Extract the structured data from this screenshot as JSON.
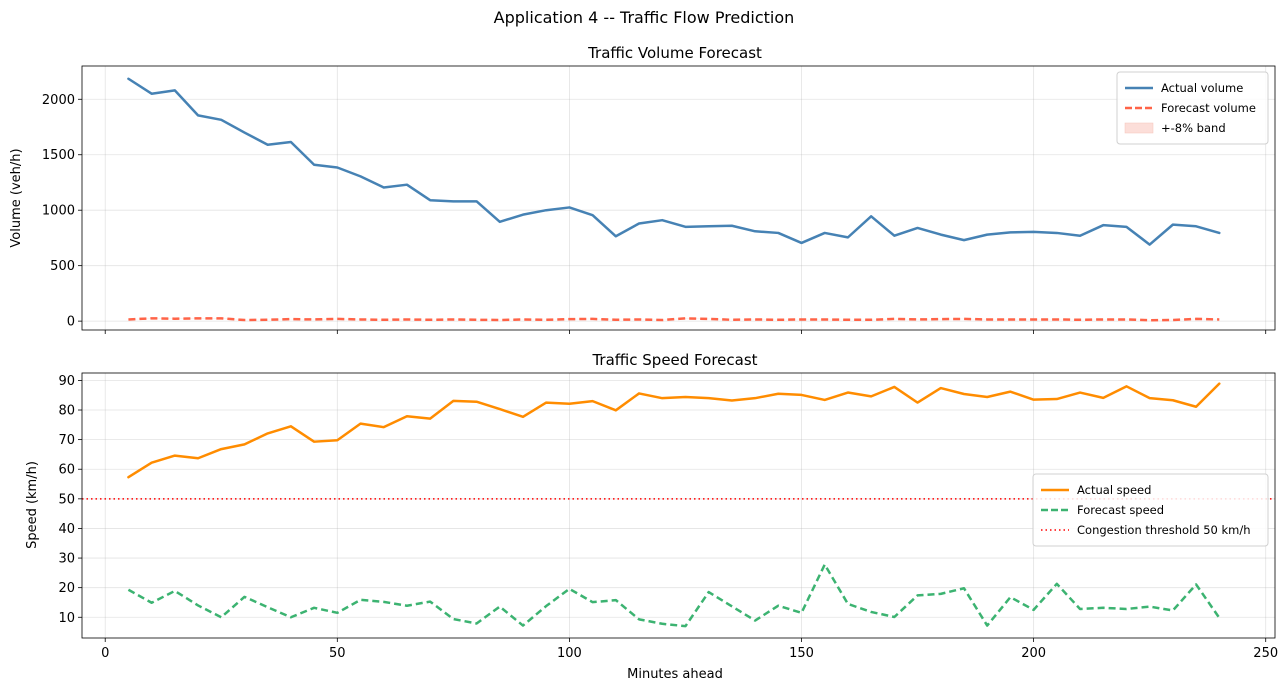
{
  "figure": {
    "title": "Application 4 -- Traffic Flow Prediction",
    "xlabel": "Minutes ahead"
  },
  "colors": {
    "actual_volume": "#4682b4",
    "forecast_volume": "#ff6347",
    "band": "#fcd7d0",
    "actual_speed": "#ff8c00",
    "forecast_speed": "#3cb371",
    "threshold": "#ff0000"
  },
  "chart_data": [
    {
      "type": "line",
      "title": "Traffic Volume Forecast",
      "xlabel": "",
      "ylabel": "Volume (veh/h)",
      "xlim": [
        -5,
        252
      ],
      "ylim": [
        -80,
        2300
      ],
      "xticks": [
        0,
        50,
        100,
        150,
        200,
        250
      ],
      "yticks": [
        0,
        500,
        1000,
        1500,
        2000
      ],
      "grid": true,
      "legend_position": "upper right",
      "x": [
        5,
        10,
        15,
        20,
        25,
        30,
        35,
        40,
        45,
        50,
        55,
        60,
        65,
        70,
        75,
        80,
        85,
        90,
        95,
        100,
        105,
        110,
        115,
        120,
        125,
        130,
        135,
        140,
        145,
        150,
        155,
        160,
        165,
        170,
        175,
        180,
        185,
        190,
        195,
        200,
        205,
        210,
        215,
        220,
        225,
        230,
        235,
        240
      ],
      "series": [
        {
          "name": "Actual volume",
          "style": "solid",
          "values": [
            2185,
            2050,
            2080,
            1855,
            1815,
            1700,
            1590,
            1615,
            1410,
            1385,
            1305,
            1205,
            1230,
            1090,
            1080,
            1080,
            895,
            960,
            1000,
            1025,
            955,
            765,
            880,
            910,
            850,
            855,
            860,
            810,
            795,
            705,
            795,
            755,
            945,
            770,
            840,
            780,
            730,
            780,
            800,
            805,
            795,
            770,
            865,
            850,
            690,
            870,
            855,
            795
          ]
        },
        {
          "name": "Forecast volume",
          "style": "dashed",
          "values": [
            15,
            25,
            22,
            25,
            25,
            10,
            12,
            18,
            15,
            20,
            15,
            12,
            15,
            12,
            15,
            12,
            10,
            15,
            12,
            18,
            20,
            12,
            15,
            10,
            25,
            20,
            12,
            15,
            12,
            15,
            15,
            12,
            12,
            20,
            15,
            18,
            20,
            15,
            15,
            15,
            15,
            12,
            15,
            15,
            8,
            10,
            20,
            15
          ]
        }
      ],
      "legend": [
        "Actual volume",
        "Forecast volume",
        "+-8% band"
      ]
    },
    {
      "type": "line",
      "title": "Traffic Speed Forecast",
      "xlabel": "Minutes ahead",
      "ylabel": "Speed (km/h)",
      "xlim": [
        -5,
        252
      ],
      "ylim": [
        3,
        92.5
      ],
      "xticks": [
        0,
        50,
        100,
        150,
        200,
        250
      ],
      "yticks": [
        10,
        20,
        30,
        40,
        50,
        60,
        70,
        80,
        90
      ],
      "grid": true,
      "legend_position": "center right",
      "threshold": 50,
      "x": [
        5,
        10,
        15,
        20,
        25,
        30,
        35,
        40,
        45,
        50,
        55,
        60,
        65,
        70,
        75,
        80,
        85,
        90,
        95,
        100,
        105,
        110,
        115,
        120,
        125,
        130,
        135,
        140,
        145,
        150,
        155,
        160,
        165,
        170,
        175,
        180,
        185,
        190,
        195,
        200,
        205,
        210,
        215,
        220,
        225,
        230,
        235,
        240
      ],
      "series": [
        {
          "name": "Actual speed",
          "style": "solid",
          "values": [
            57.3,
            62.2,
            64.6,
            63.7,
            66.8,
            68.4,
            72.1,
            74.5,
            69.3,
            69.8,
            75.4,
            74.2,
            77.9,
            77.1,
            83.1,
            82.8,
            80.3,
            77.7,
            82.5,
            82.1,
            83.0,
            79.9,
            85.6,
            84.0,
            84.4,
            84.0,
            83.2,
            84.0,
            85.5,
            85.1,
            83.4,
            85.9,
            84.6,
            87.8,
            82.5,
            87.4,
            85.4,
            84.4,
            86.2,
            83.5,
            83.7,
            85.9,
            84.1,
            88.0,
            84.0,
            83.3,
            81.1,
            88.9
          ]
        },
        {
          "name": "Forecast speed",
          "style": "dashed",
          "values": [
            19.3,
            14.9,
            18.9,
            14.0,
            10.0,
            16.9,
            13.4,
            10.0,
            13.2,
            11.5,
            15.9,
            15.2,
            13.9,
            15.3,
            9.4,
            7.9,
            13.6,
            7.2,
            13.8,
            19.6,
            15.1,
            15.8,
            9.3,
            7.8,
            7.0,
            18.5,
            13.7,
            8.9,
            13.9,
            11.5,
            27.8,
            14.5,
            11.8,
            10.1,
            17.4,
            17.9,
            19.8,
            7.2,
            16.8,
            12.5,
            21.3,
            12.8,
            13.2,
            12.8,
            13.6,
            12.3,
            21.1,
            9.8
          ]
        }
      ],
      "legend": [
        "Actual speed",
        "Forecast speed",
        "Congestion threshold 50 km/h"
      ]
    }
  ]
}
